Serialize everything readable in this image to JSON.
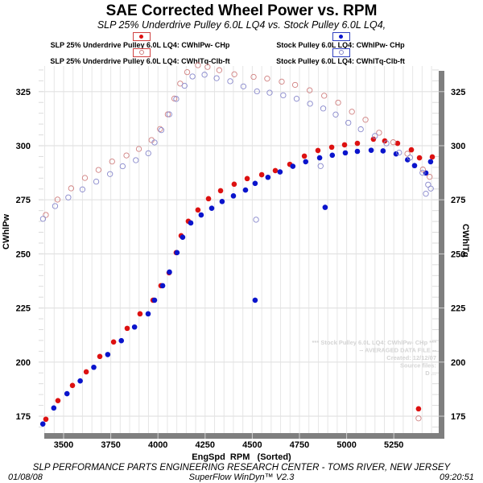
{
  "chart_data": {
    "type": "scatter",
    "title": "SAE Corrected Wheel Power vs. RPM",
    "subtitle": "SLP 25% Underdrive Pulley 6.0L LQ4 vs. Stock Pulley 6.0L LQ4,",
    "xlabel": "EngSpd  RPM   (Sorted)",
    "ylabel_left": "CWhlPw",
    "ylabel_right": "CWhlTq",
    "xlim": [
      3380,
      5480
    ],
    "ylim": [
      166,
      338
    ],
    "x_ticks": [
      3500,
      3750,
      4000,
      4250,
      4500,
      4750,
      5000,
      5250
    ],
    "y_ticks": [
      175,
      200,
      225,
      250,
      275,
      300,
      325
    ],
    "y_ticks_right": [
      175,
      200,
      225,
      250,
      275,
      300,
      325
    ],
    "grid": true,
    "legend_position": "top",
    "series": [
      {
        "name": "SLP 25% Underdrive Pulley 6.0L LQ4: CWhlPw- CHp",
        "color": "#dd1111",
        "marker": "filled",
        "points": [
          [
            3406,
            173.6
          ],
          [
            3470,
            182.2
          ],
          [
            3547,
            189.2
          ],
          [
            3620,
            195.5
          ],
          [
            3692,
            202.6
          ],
          [
            3765,
            209.3
          ],
          [
            3837,
            215.6
          ],
          [
            3905,
            222.3
          ],
          [
            3974,
            228.6
          ],
          [
            4016,
            235.3
          ],
          [
            4059,
            241.3
          ],
          [
            4097,
            250.6
          ],
          [
            4123,
            258.4
          ],
          [
            4161,
            265.1
          ],
          [
            4212,
            270.3
          ],
          [
            4268,
            275.5
          ],
          [
            4332,
            279.2
          ],
          [
            4404,
            282.2
          ],
          [
            4473,
            284.8
          ],
          [
            4550,
            286.6
          ],
          [
            4622,
            288.5
          ],
          [
            4699,
            291.4
          ],
          [
            4776,
            295.2
          ],
          [
            4848,
            297.8
          ],
          [
            4921,
            299.3
          ],
          [
            4989,
            300.4
          ],
          [
            5057,
            301.1
          ],
          [
            5142,
            303.0
          ],
          [
            5202,
            302.2
          ],
          [
            5270,
            301.1
          ],
          [
            5343,
            298.1
          ],
          [
            5386,
            294.4
          ],
          [
            5454,
            294.8
          ],
          [
            5381,
            178.4
          ]
        ]
      },
      {
        "name": "Stock Pulley 6.0L LQ4: CWhlPw- CHp",
        "color": "#0a14cc",
        "marker": "filled",
        "points": [
          [
            3390,
            171.4
          ],
          [
            3448,
            178.8
          ],
          [
            3518,
            185.4
          ],
          [
            3588,
            191.3
          ],
          [
            3660,
            197.6
          ],
          [
            3734,
            203.5
          ],
          [
            3806,
            209.9
          ],
          [
            3876,
            216.2
          ],
          [
            3948,
            222.3
          ],
          [
            3982,
            228.6
          ],
          [
            4025,
            235.3
          ],
          [
            4061,
            241.6
          ],
          [
            4101,
            250.6
          ],
          [
            4131,
            257.7
          ],
          [
            4174,
            264.3
          ],
          [
            4229,
            268.0
          ],
          [
            4285,
            271.1
          ],
          [
            4340,
            274.2
          ],
          [
            4400,
            276.8
          ],
          [
            4464,
            279.5
          ],
          [
            4515,
            282.6
          ],
          [
            4583,
            285.4
          ],
          [
            4647,
            287.9
          ],
          [
            4715,
            290.5
          ],
          [
            4783,
            292.6
          ],
          [
            4857,
            294.4
          ],
          [
            4924,
            295.6
          ],
          [
            4993,
            296.7
          ],
          [
            5057,
            297.4
          ],
          [
            5130,
            297.9
          ],
          [
            5193,
            297.6
          ],
          [
            5262,
            296.2
          ],
          [
            5323,
            293.5
          ],
          [
            5360,
            290.8
          ],
          [
            5420,
            287.4
          ],
          [
            5445,
            292.6
          ],
          [
            4515,
            228.6
          ],
          [
            4886,
            271.5
          ]
        ]
      },
      {
        "name": "SLP 25% Underdrive Pulley 6.0L LQ4: CWhlTq-Clb-ft",
        "color": "#d08080",
        "marker": "hollow",
        "points": [
          [
            3406,
            268.0
          ],
          [
            3468,
            275.1
          ],
          [
            3540,
            280.3
          ],
          [
            3613,
            285.1
          ],
          [
            3685,
            288.8
          ],
          [
            3757,
            292.7
          ],
          [
            3833,
            295.5
          ],
          [
            3899,
            298.5
          ],
          [
            3966,
            302.6
          ],
          [
            4011,
            307.7
          ],
          [
            4052,
            314.5
          ],
          [
            4087,
            321.8
          ],
          [
            4118,
            328.7
          ],
          [
            4155,
            334.0
          ],
          [
            4212,
            337.2
          ],
          [
            4263,
            336.4
          ],
          [
            4325,
            334.9
          ],
          [
            4405,
            333.0
          ],
          [
            4507,
            331.8
          ],
          [
            4579,
            331.0
          ],
          [
            4656,
            329.6
          ],
          [
            4727,
            328.1
          ],
          [
            4804,
            325.6
          ],
          [
            4881,
            323.1
          ],
          [
            4955,
            319.9
          ],
          [
            5028,
            315.7
          ],
          [
            5100,
            312.0
          ],
          [
            5172,
            306.0
          ],
          [
            5247,
            301.6
          ],
          [
            5322,
            296.3
          ],
          [
            5404,
            289.0
          ],
          [
            5440,
            285.6
          ],
          [
            5381,
            174.0
          ]
        ]
      },
      {
        "name": "Stock Pulley 6.0L LQ4: CWhlTq-Clb-ft",
        "color": "#8888cc",
        "marker": "hollow",
        "points": [
          [
            3391,
            266.2
          ],
          [
            3455,
            272.1
          ],
          [
            3525,
            276.1
          ],
          [
            3600,
            279.8
          ],
          [
            3673,
            283.4
          ],
          [
            3746,
            286.9
          ],
          [
            3813,
            290.5
          ],
          [
            3883,
            293.3
          ],
          [
            3949,
            296.5
          ],
          [
            3982,
            301.5
          ],
          [
            4018,
            307.2
          ],
          [
            4060,
            314.5
          ],
          [
            4097,
            321.6
          ],
          [
            4141,
            327.7
          ],
          [
            4183,
            332.0
          ],
          [
            4247,
            332.8
          ],
          [
            4311,
            331.2
          ],
          [
            4383,
            329.8
          ],
          [
            4453,
            327.4
          ],
          [
            4525,
            325.1
          ],
          [
            4592,
            324.5
          ],
          [
            4664,
            323.3
          ],
          [
            4735,
            321.7
          ],
          [
            4806,
            319.4
          ],
          [
            4876,
            317.2
          ],
          [
            4942,
            314.4
          ],
          [
            5009,
            310.6
          ],
          [
            5075,
            307.6
          ],
          [
            5150,
            304.5
          ],
          [
            5211,
            301.1
          ],
          [
            5278,
            296.8
          ],
          [
            5336,
            294.5
          ],
          [
            5402,
            287.5
          ],
          [
            5432,
            282.0
          ],
          [
            5446,
            280.2
          ],
          [
            5420,
            277.8
          ],
          [
            4520,
            265.8
          ],
          [
            4862,
            290.6
          ]
        ]
      }
    ],
    "annotation_lines": [
      "*** Stock Pulley 6.0L LQ4: CWhlPw- CHp    ***",
      "-- AVERAGED DATA FILE --",
      "Created: 12/12/07",
      "Source files:",
      "D ..."
    ]
  },
  "legend": {
    "slp_hp": "SLP 25% Underdrive Pulley 6.0L LQ4: CWhlPw- CHp",
    "stock_hp": "Stock Pulley 6.0L LQ4: CWhlPw- CHp",
    "slp_tq": "SLP 25% Underdrive Pulley 6.0L LQ4: CWhlTq-Clb-ft",
    "stock_tq": "Stock Pulley 6.0L LQ4: CWhlTq-Clb-ft"
  },
  "footer": {
    "line1": "SLP PERFORMANCE PARTS ENGINEERING RESEARCH CENTER - TOMS RIVER, NEW JERSEY",
    "line2": "SuperFlow WinDyn™ V2.3",
    "date": "01/08/08",
    "time": "09:20:51"
  }
}
